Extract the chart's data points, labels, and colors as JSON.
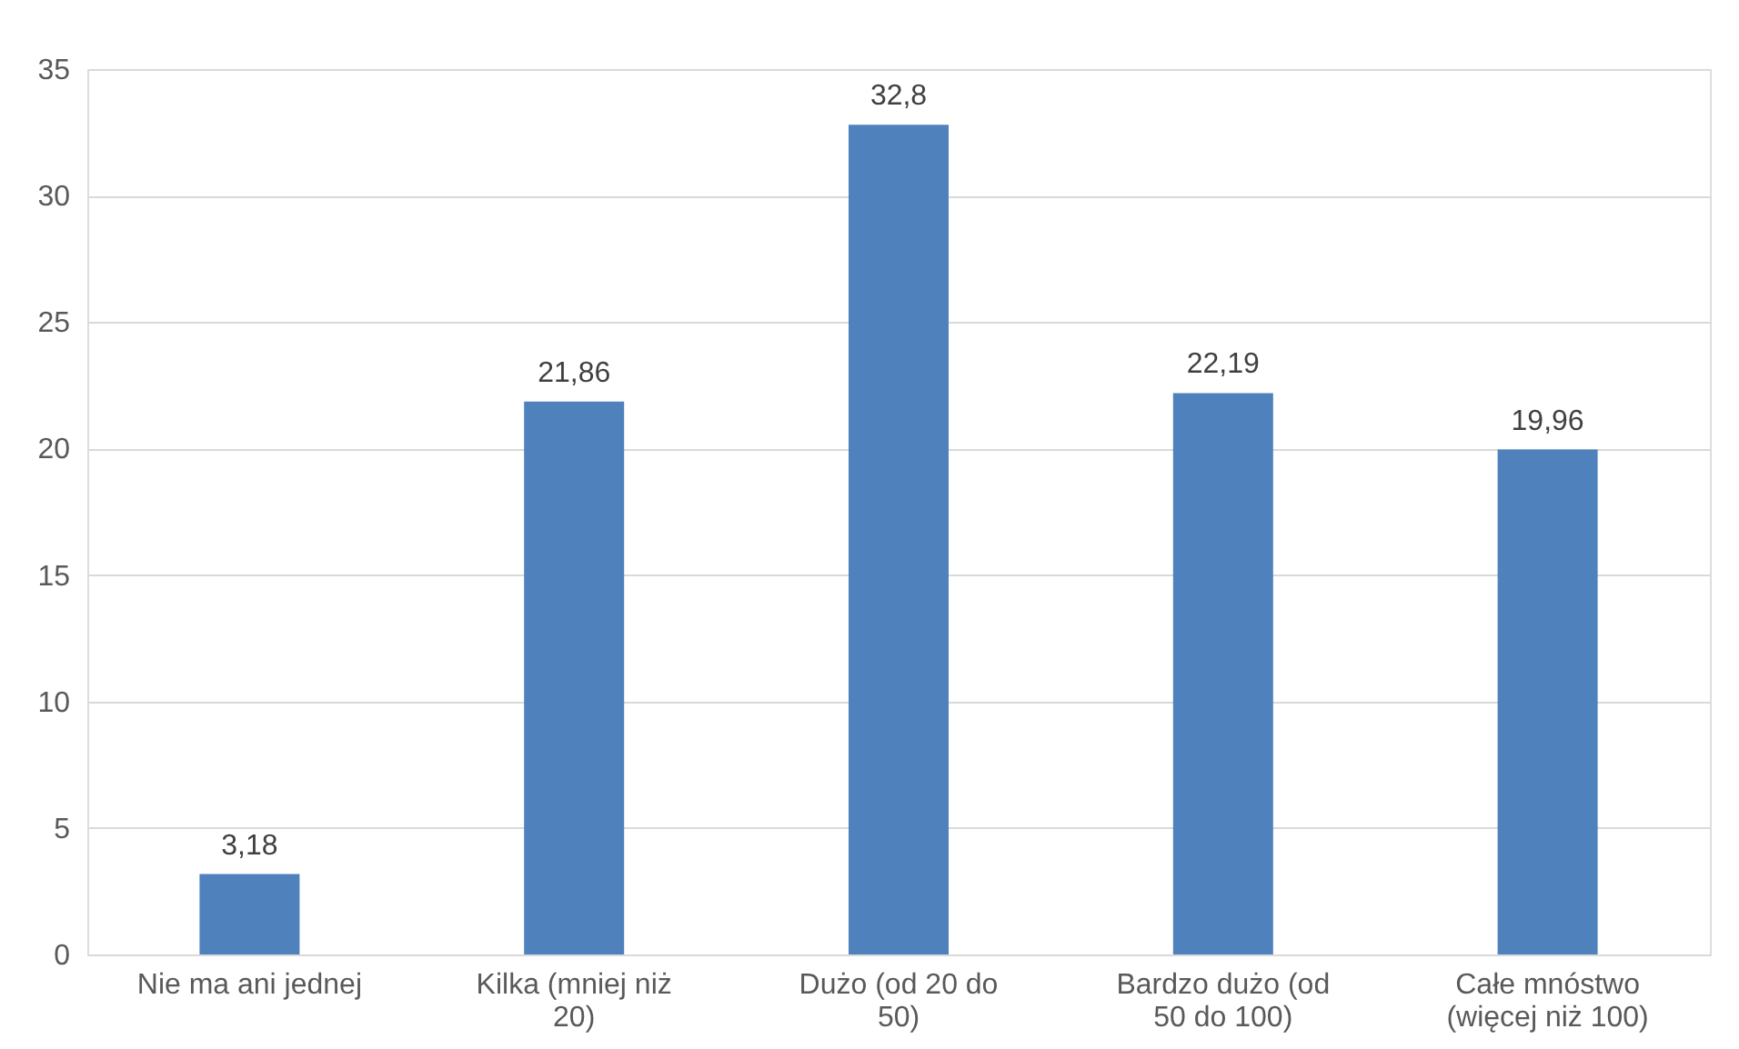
{
  "chart_data": {
    "type": "bar",
    "categories": [
      "Nie ma ani jednej",
      "Kilka (mniej niż 20)",
      "Dużo (od 20 do 50)",
      "Bardzo dużo (od 50 do 100)",
      "Całe mnóstwo (więcej niż 100)"
    ],
    "values": [
      3.18,
      21.86,
      32.8,
      22.19,
      19.96
    ],
    "value_labels": [
      "3,18",
      "21,86",
      "32,8",
      "22,19",
      "19,96"
    ],
    "color": "#4f81bd",
    "ylim": [
      0,
      35
    ],
    "yticks": [
      0,
      5,
      10,
      15,
      20,
      25,
      30,
      35
    ],
    "grid": "y"
  }
}
